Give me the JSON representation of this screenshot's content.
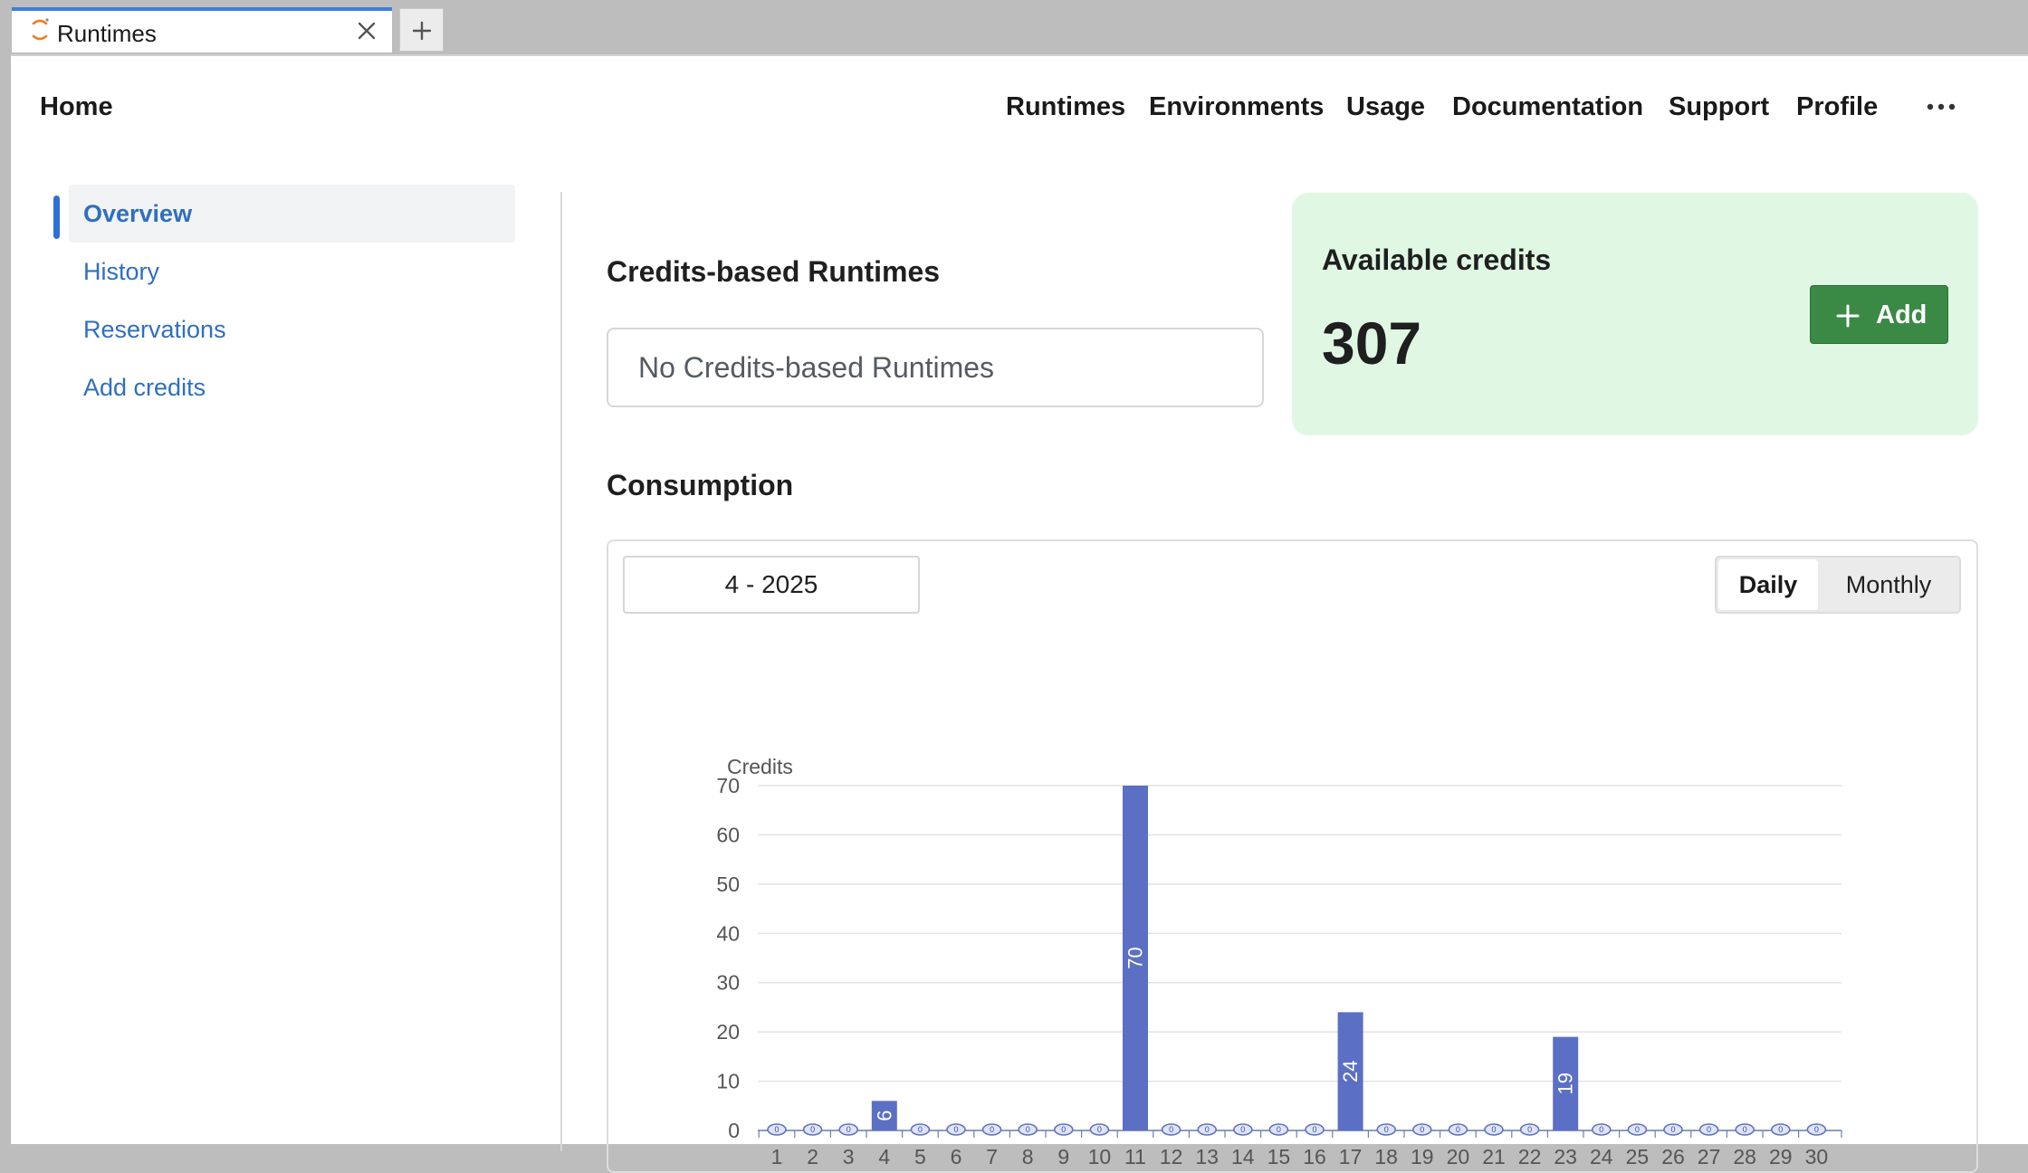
{
  "browser": {
    "tab_title": "Runtimes"
  },
  "topnav": {
    "home": "Home",
    "links": [
      "Runtimes",
      "Environments",
      "Usage",
      "Documentation",
      "Support",
      "Profile"
    ]
  },
  "sidebar": {
    "items": [
      "Overview",
      "History",
      "Reservations",
      "Add credits"
    ],
    "active_index": 0
  },
  "main": {
    "credits_runtimes_title": "Credits-based Runtimes",
    "no_runtimes_text": "No Credits-based Runtimes",
    "available_credits_label": "Available credits",
    "available_credits_value": "307",
    "add_button_label": "Add",
    "consumption_title": "Consumption",
    "month_picker_value": "4 - 2025",
    "toggle": {
      "daily": "Daily",
      "monthly": "Monthly",
      "selected": "Daily"
    }
  },
  "colors": {
    "accent": "#2f6fd8",
    "link": "#2f6fbf",
    "card_bg": "#e0f8e3",
    "add_button": "#3a8a45",
    "bar": "#5b6fc4"
  },
  "chart_data": {
    "type": "bar",
    "ylabel": "Credits",
    "ylim": [
      0,
      70
    ],
    "yticks": [
      0,
      10,
      20,
      30,
      40,
      50,
      60,
      70
    ],
    "grid": true,
    "categories": [
      "1",
      "2",
      "3",
      "4",
      "5",
      "6",
      "7",
      "8",
      "9",
      "10",
      "11",
      "12",
      "13",
      "14",
      "15",
      "16",
      "17",
      "18",
      "19",
      "20",
      "21",
      "22",
      "23",
      "24",
      "25",
      "26",
      "27",
      "28",
      "29",
      "30"
    ],
    "values": [
      0,
      0,
      0,
      6,
      0,
      0,
      0,
      0,
      0,
      0,
      70,
      0,
      0,
      0,
      0,
      0,
      24,
      0,
      0,
      0,
      0,
      0,
      19,
      0,
      0,
      0,
      0,
      0,
      0,
      0
    ],
    "data_labels": [
      "",
      "",
      "",
      "6",
      "",
      "",
      "",
      "",
      "",
      "",
      "70",
      "",
      "",
      "",
      "",
      "",
      "24",
      "",
      "",
      "",
      "",
      "",
      "19",
      "",
      "",
      "",
      "",
      "",
      "",
      ""
    ],
    "zero_marker_label": "0"
  }
}
